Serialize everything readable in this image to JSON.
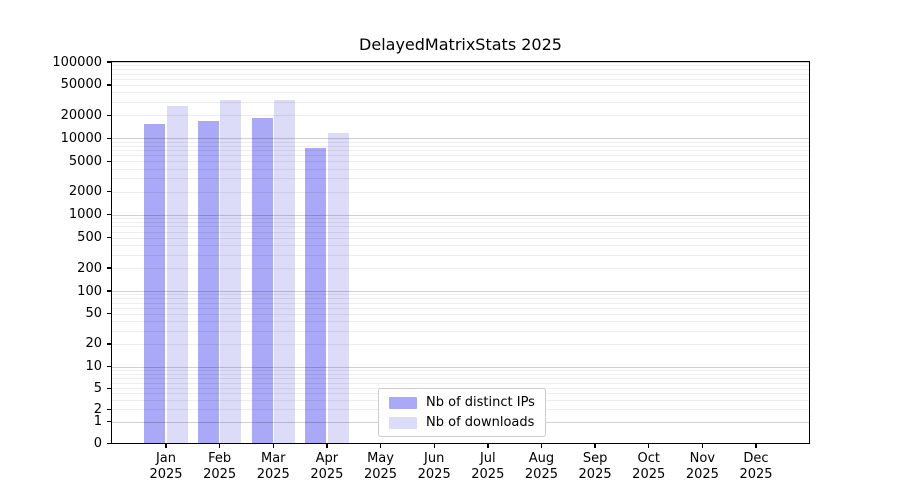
{
  "title": "DelayedMatrixStats 2025",
  "chart_data": {
    "type": "bar",
    "title": "DelayedMatrixStats 2025",
    "categories": [
      "Jan",
      "Feb",
      "Mar",
      "Apr",
      "May",
      "Jun",
      "Jul",
      "Aug",
      "Sep",
      "Oct",
      "Nov",
      "Dec"
    ],
    "x_year": "2025",
    "series": [
      {
        "name": "Nb of distinct IPs",
        "color": "#a9a9f7",
        "values": [
          15500,
          16800,
          18300,
          7500,
          null,
          null,
          null,
          null,
          null,
          null,
          null,
          null
        ]
      },
      {
        "name": "Nb of downloads",
        "color": "#dcdcf9",
        "values": [
          26500,
          32000,
          31400,
          11800,
          null,
          null,
          null,
          null,
          null,
          null,
          null,
          null
        ]
      }
    ],
    "yscale": "log-like with 0 baseline",
    "ylim": [
      0,
      100000
    ],
    "ytick_labels": [
      "0",
      "1",
      "2",
      "5",
      "10",
      "20",
      "50",
      "100",
      "200",
      "500",
      "1000",
      "2000",
      "5000",
      "10000",
      "20000",
      "50000",
      "100000"
    ],
    "grid": "horizontal minor + major decade lines",
    "legend_position": "lower center inside axes"
  }
}
